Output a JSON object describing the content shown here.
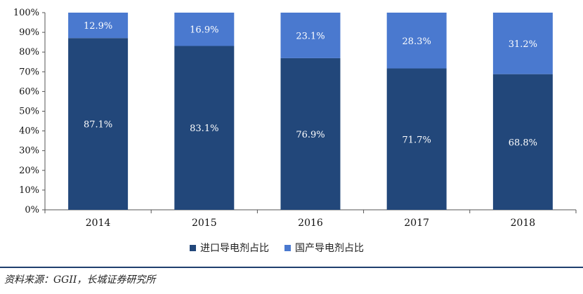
{
  "colors": {
    "import": "#22477a",
    "domestic": "#4a79cf",
    "axis": "#555555"
  },
  "legend": [
    {
      "label": "进口导电剂占比"
    },
    {
      "label": "国产导电剂占比"
    }
  ],
  "source": "资料来源：GGII，长城证券研究所",
  "chart_data": {
    "type": "bar",
    "stacked": true,
    "percent_stacked": true,
    "categories": [
      "2014",
      "2015",
      "2016",
      "2017",
      "2018"
    ],
    "series": [
      {
        "name": "进口导电剂占比",
        "values": [
          87.1,
          83.1,
          76.9,
          71.7,
          68.8
        ],
        "labels": [
          "87.1%",
          "83.1%",
          "76.9%",
          "71.7%",
          "68.8%"
        ]
      },
      {
        "name": "国产导电剂占比",
        "values": [
          12.9,
          16.9,
          23.1,
          28.3,
          31.2
        ],
        "labels": [
          "12.9%",
          "16.9%",
          "23.1%",
          "28.3%",
          "31.2%"
        ]
      }
    ],
    "ylim": [
      0,
      100
    ],
    "yticks": [
      "0%",
      "10%",
      "20%",
      "30%",
      "40%",
      "50%",
      "60%",
      "70%",
      "80%",
      "90%",
      "100%"
    ],
    "title": "",
    "xlabel": "",
    "ylabel": "",
    "grid": false,
    "legend_position": "bottom"
  }
}
